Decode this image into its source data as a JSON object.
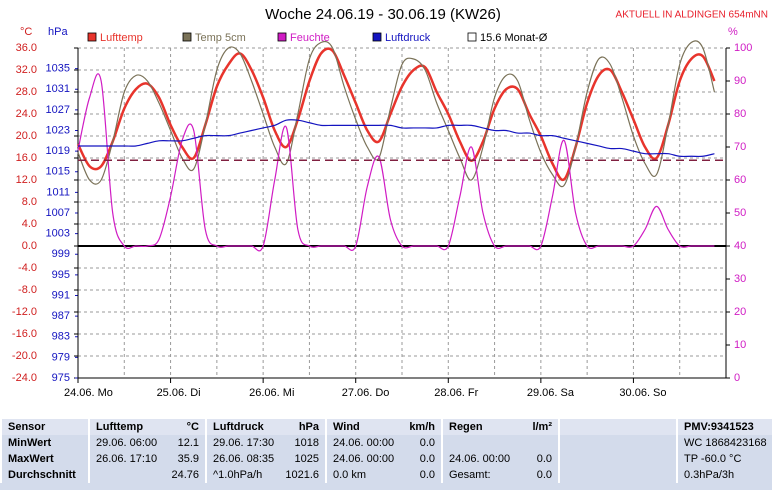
{
  "chart_data": {
    "type": "line",
    "title": "Woche 24.06.19 - 30.06.19 (KW26)",
    "annotation": "AKTUELL IN ALDINGEN 654mNN",
    "y_label": "°C",
    "y2_label": "hPa",
    "y3_label": "%",
    "categories": [
      "24.06.  Mo",
      "25.06.  Di",
      "26.06.  Mi",
      "27.06.  Do",
      "28.06.  Fr",
      "29.06.  Sa",
      "30.06.  So"
    ],
    "ylim": [
      -24,
      36
    ],
    "yticks": [
      {
        "value": 36,
        "label": "36.0"
      },
      {
        "value": 32,
        "label": "32.0"
      },
      {
        "value": 28,
        "label": "28.0"
      },
      {
        "value": 24,
        "label": "24.0"
      },
      {
        "value": 20,
        "label": "20.0"
      },
      {
        "value": 16,
        "label": "16.0"
      },
      {
        "value": 12,
        "label": "12.0"
      },
      {
        "value": 8,
        "label": "8.0"
      },
      {
        "value": 4,
        "label": "4.0"
      },
      {
        "value": 0,
        "label": "0.0"
      },
      {
        "value": -4,
        "label": "-4.0"
      },
      {
        "value": -8,
        "label": "-8.0"
      },
      {
        "value": -12,
        "label": "-12.0"
      },
      {
        "value": -16,
        "label": "-16.0"
      },
      {
        "value": -20,
        "label": "-20.0"
      },
      {
        "value": -24,
        "label": "-24.0"
      }
    ],
    "y2lim": [
      975,
      1039
    ],
    "y2ticks": [
      1035,
      1031,
      1027,
      1023,
      1019,
      1015,
      1011,
      1007,
      1003,
      999,
      995,
      991,
      987,
      983,
      979,
      975
    ],
    "y3lim": [
      0,
      100
    ],
    "y3ticks": [
      100,
      90,
      80,
      70,
      60,
      50,
      40,
      30,
      20,
      10,
      0
    ],
    "grid": true,
    "series": [
      {
        "name": "Lufttemp",
        "color": "#e8342c",
        "values": [
          [
            18.5,
            14.5,
            14.5,
            19,
            25,
            28.5,
            29.5,
            27
          ],
          [
            22,
            18,
            16,
            22,
            29,
            33,
            35,
            32
          ],
          [
            27,
            21,
            18,
            23,
            30,
            35,
            35.5,
            31
          ],
          [
            26,
            21,
            19,
            24,
            29,
            32,
            32.5,
            28
          ],
          [
            24,
            19,
            15.5,
            19,
            25,
            28.5,
            28.5,
            24
          ],
          [
            20,
            15,
            12.1,
            18,
            26,
            31,
            32,
            28
          ],
          [
            23,
            18,
            16,
            22,
            30,
            34,
            34.5,
            30
          ]
        ]
      },
      {
        "name": "Temp 5cm",
        "color": "#7a7258",
        "values": [
          [
            17,
            12,
            12,
            19,
            28,
            31,
            30,
            26
          ],
          [
            21,
            16,
            14,
            22,
            32,
            36,
            35,
            30
          ],
          [
            24,
            18,
            15,
            24,
            34,
            37,
            36,
            29
          ],
          [
            23,
            18,
            16,
            25,
            33,
            34,
            32,
            26
          ],
          [
            21,
            16,
            12,
            18,
            27,
            31,
            30,
            23
          ],
          [
            17,
            13,
            11,
            18,
            28,
            34,
            33,
            27
          ],
          [
            20,
            15,
            13,
            22,
            33,
            37,
            36,
            28
          ]
        ]
      },
      {
        "name": "Feuchte",
        "color": "#d01cc4",
        "axis": "y3",
        "values": [
          [
            69,
            85,
            90,
            50,
            40,
            40,
            40,
            42
          ],
          [
            55,
            72,
            75,
            45,
            40,
            40,
            40,
            40
          ],
          [
            40,
            60,
            76,
            45,
            40,
            40,
            40,
            40
          ],
          [
            40,
            58,
            67,
            48,
            40,
            40,
            40,
            40
          ],
          [
            40,
            55,
            70,
            50,
            40,
            40,
            40,
            40
          ],
          [
            40,
            55,
            72,
            50,
            40,
            40,
            40,
            40
          ],
          [
            40,
            45,
            52,
            45,
            40,
            40,
            40,
            40
          ]
        ]
      },
      {
        "name": "Luftdruck",
        "color": "#1414c0",
        "axis": "y2",
        "values": [
          [
            1020,
            1020,
            1020,
            1020,
            1020,
            1020,
            1020.5,
            1021
          ],
          [
            1021,
            1021,
            1021.5,
            1022,
            1022,
            1022,
            1022.5,
            1023
          ],
          [
            1023.5,
            1024,
            1025,
            1025,
            1024.5,
            1024,
            1024,
            1024
          ],
          [
            1024,
            1024,
            1024,
            1024,
            1023.5,
            1023.5,
            1023.5,
            1023.5
          ],
          [
            1024,
            1024,
            1024,
            1023.5,
            1023,
            1023,
            1022.5,
            1022.5
          ],
          [
            1022,
            1022,
            1021.5,
            1021,
            1020.5,
            1020,
            1019.5,
            1019.5
          ],
          [
            1019,
            1018.5,
            1018.5,
            1018.5,
            1018,
            1018,
            1018,
            1018.5
          ]
        ]
      },
      {
        "name": "15.6 Monat-Ø",
        "color": "#802040",
        "style": "dashed",
        "value": 15.6
      }
    ]
  },
  "table": {
    "header": [
      [
        "Sensor"
      ],
      [
        "Lufttemp",
        "°C"
      ],
      [
        "Luftdruck",
        "hPa"
      ],
      [
        "Wind",
        "km/h"
      ],
      [
        "Regen",
        "l/m²"
      ],
      [],
      [
        "PMV:9341523"
      ]
    ],
    "rows": [
      [
        [
          "MinWert"
        ],
        [
          "29.06.  06:00",
          "12.1"
        ],
        [
          "29.06.  17:30",
          "1018"
        ],
        [
          "24.06.  00:00",
          "0.0"
        ],
        [],
        [],
        [
          "WC 1868423168"
        ]
      ],
      [
        [
          "MaxWert"
        ],
        [
          "26.06.  17:10",
          "35.9"
        ],
        [
          "26.06.  08:35",
          "1025"
        ],
        [
          "24.06.  00:00",
          "0.0"
        ],
        [
          "24.06.  00:00",
          "0.0"
        ],
        [],
        [
          "TP -60.0 °C"
        ]
      ],
      [
        [
          "Durchschnitt"
        ],
        [
          "24.76"
        ],
        [
          "^1.0hPa/h",
          "1021.6"
        ],
        [
          "0.0 km",
          "0.0"
        ],
        [
          "Gesamt:",
          "0.0"
        ],
        [],
        [
          "0.3hPa/3h"
        ]
      ]
    ]
  }
}
